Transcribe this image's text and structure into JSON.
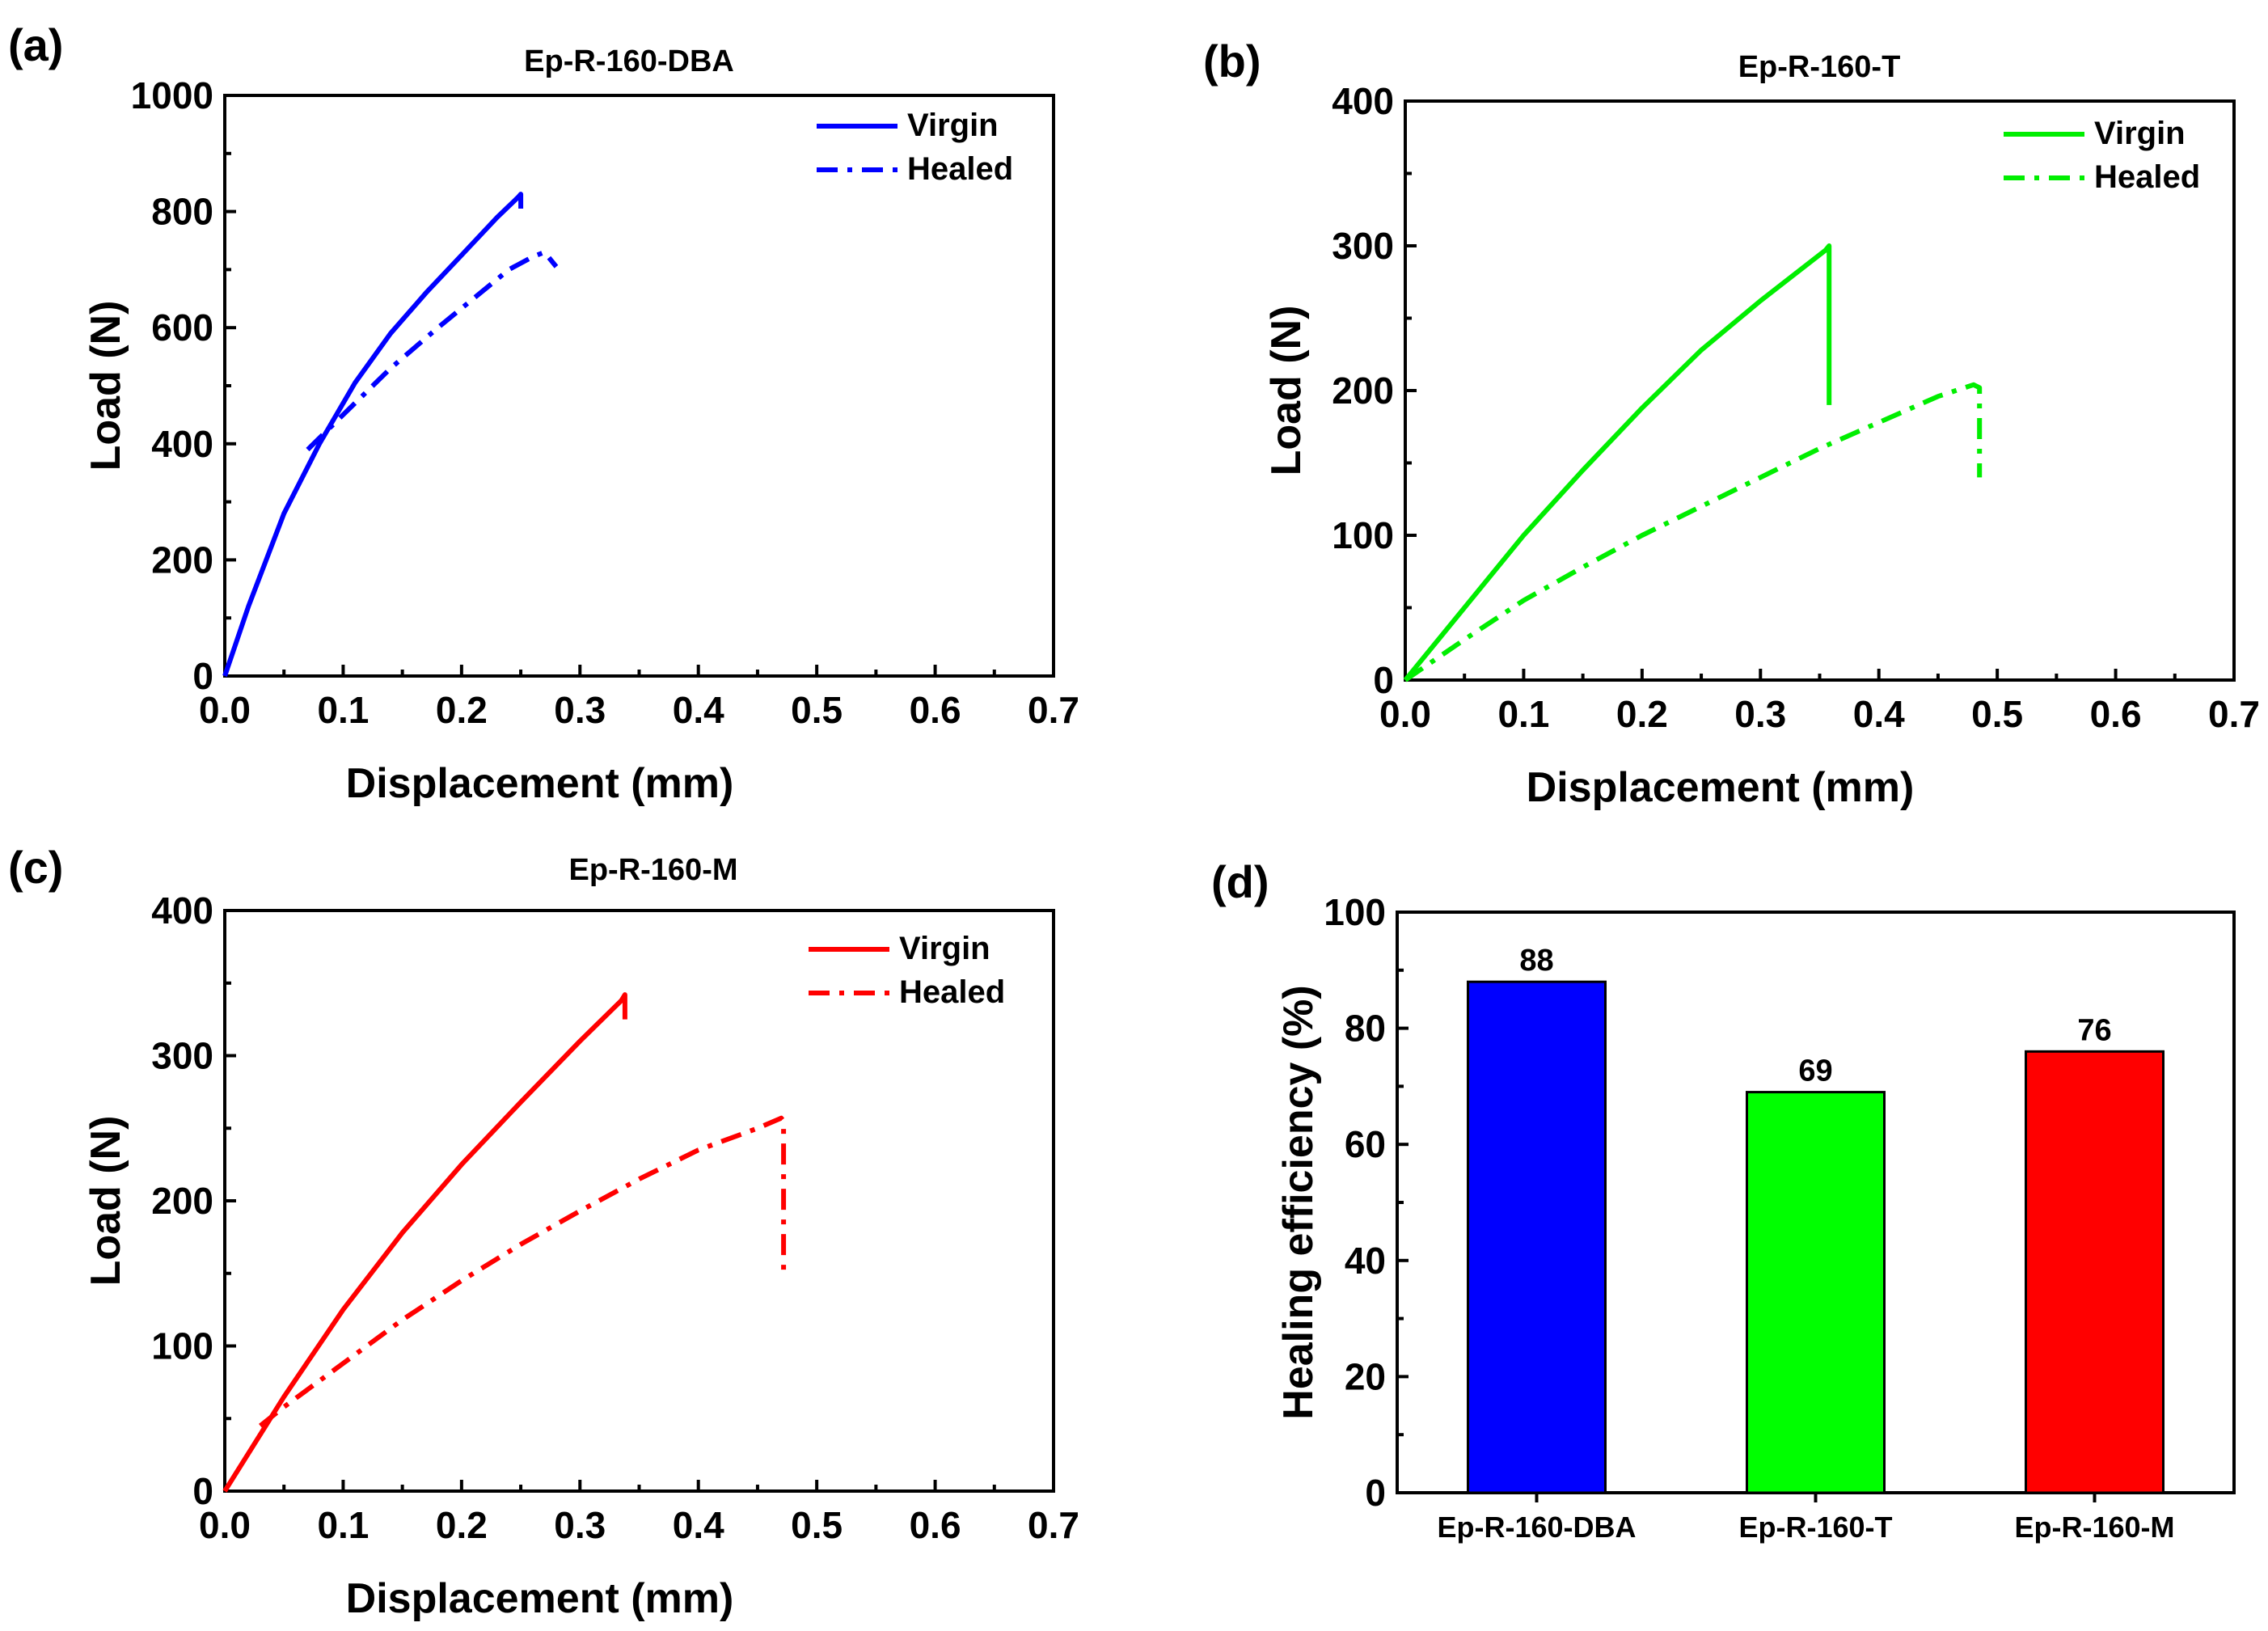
{
  "chart_data": [
    {
      "id": "a",
      "panel_label": "(a)",
      "type": "line",
      "title": "Ep-R-160-DBA",
      "xlabel": "Displacement (mm)",
      "ylabel": "Load (N)",
      "xlim": [
        0,
        0.7
      ],
      "ylim": [
        0,
        1000
      ],
      "xticks": [
        0,
        0.1,
        0.2,
        0.3,
        0.4,
        0.5,
        0.6,
        0.7
      ],
      "xtick_labels": [
        "0.0",
        "0.1",
        "0.2",
        "0.3",
        "0.4",
        "0.5",
        "0.6",
        "0.7"
      ],
      "yticks": [
        0,
        200,
        400,
        600,
        800,
        1000
      ],
      "ytick_labels": [
        "0",
        "200",
        "400",
        "600",
        "800",
        "1000"
      ],
      "legend_position": "top-right",
      "color": "#0000ff",
      "series": [
        {
          "name": "Virgin",
          "style": "solid",
          "x": [
            0,
            0.02,
            0.05,
            0.08,
            0.11,
            0.14,
            0.17,
            0.2,
            0.23,
            0.248,
            0.25,
            0.25
          ],
          "y": [
            0,
            120,
            280,
            400,
            505,
            590,
            660,
            725,
            790,
            825,
            830,
            805
          ]
        },
        {
          "name": "Healed",
          "style": "dashdot",
          "x": [
            0.07,
            0.1,
            0.14,
            0.18,
            0.21,
            0.24,
            0.26,
            0.27,
            0.28
          ],
          "y": [
            390,
            450,
            530,
            600,
            650,
            700,
            722,
            730,
            705
          ]
        }
      ]
    },
    {
      "id": "b",
      "panel_label": "(b)",
      "type": "line",
      "title": "Ep-R-160-T",
      "xlabel": "Displacement (mm)",
      "ylabel": "Load (N)",
      "xlim": [
        0,
        0.7
      ],
      "ylim": [
        0,
        400
      ],
      "xticks": [
        0,
        0.1,
        0.2,
        0.3,
        0.4,
        0.5,
        0.6,
        0.7
      ],
      "xtick_labels": [
        "0.0",
        "0.1",
        "0.2",
        "0.3",
        "0.4",
        "0.5",
        "0.6",
        "0.7"
      ],
      "yticks": [
        0,
        100,
        200,
        300,
        400
      ],
      "ytick_labels": [
        "0",
        "100",
        "200",
        "300",
        "400"
      ],
      "legend_position": "top-right",
      "color": "#00ee00",
      "series": [
        {
          "name": "Virgin",
          "style": "solid",
          "x": [
            0,
            0.05,
            0.1,
            0.15,
            0.2,
            0.25,
            0.3,
            0.355,
            0.358,
            0.358
          ],
          "y": [
            0,
            50,
            100,
            145,
            188,
            228,
            262,
            297,
            300,
            190
          ]
        },
        {
          "name": "Healed",
          "style": "dashdot",
          "x": [
            0,
            0.05,
            0.1,
            0.15,
            0.2,
            0.25,
            0.3,
            0.35,
            0.4,
            0.45,
            0.48,
            0.485,
            0.485
          ],
          "y": [
            0,
            28,
            55,
            78,
            100,
            120,
            140,
            160,
            178,
            196,
            204,
            202,
            140
          ]
        }
      ]
    },
    {
      "id": "c",
      "panel_label": "(c)",
      "type": "line",
      "title": "Ep-R-160-M",
      "xlabel": "Displacement (mm)",
      "ylabel": "Load (N)",
      "xlim": [
        0,
        0.7
      ],
      "ylim": [
        0,
        400
      ],
      "xticks": [
        0,
        0.1,
        0.2,
        0.3,
        0.4,
        0.5,
        0.6,
        0.7
      ],
      "xtick_labels": [
        "0.0",
        "0.1",
        "0.2",
        "0.3",
        "0.4",
        "0.5",
        "0.6",
        "0.7"
      ],
      "yticks": [
        0,
        100,
        200,
        300,
        400
      ],
      "ytick_labels": [
        "0",
        "100",
        "200",
        "300",
        "400"
      ],
      "legend_position": "top-right",
      "color": "#ff0000",
      "series": [
        {
          "name": "Virgin",
          "style": "solid",
          "x": [
            0,
            0.05,
            0.1,
            0.15,
            0.2,
            0.25,
            0.3,
            0.335,
            0.338,
            0.338
          ],
          "y": [
            0,
            65,
            125,
            178,
            225,
            268,
            310,
            338,
            342,
            325
          ]
        },
        {
          "name": "Healed",
          "style": "dashdot",
          "x": [
            0.03,
            0.05,
            0.1,
            0.15,
            0.2,
            0.25,
            0.3,
            0.35,
            0.4,
            0.45,
            0.47,
            0.472,
            0.472
          ],
          "y": [
            45,
            58,
            88,
            118,
            145,
            170,
            193,
            215,
            235,
            250,
            257,
            255,
            148
          ]
        }
      ]
    },
    {
      "id": "d",
      "panel_label": "(d)",
      "type": "bar",
      "title": "",
      "xlabel": "",
      "ylabel": "Healing efficiency (%)",
      "ylim": [
        0,
        100
      ],
      "yticks": [
        0,
        20,
        40,
        60,
        80,
        100
      ],
      "ytick_labels": [
        "0",
        "20",
        "40",
        "60",
        "80",
        "100"
      ],
      "categories": [
        "Ep-R-160-DBA",
        "Ep-R-160-T",
        "Ep-R-160-M"
      ],
      "values": [
        88,
        69,
        76
      ],
      "value_labels": [
        "88",
        "69",
        "76"
      ],
      "colors": [
        "#0000ff",
        "#00ff00",
        "#ff0000"
      ]
    }
  ]
}
